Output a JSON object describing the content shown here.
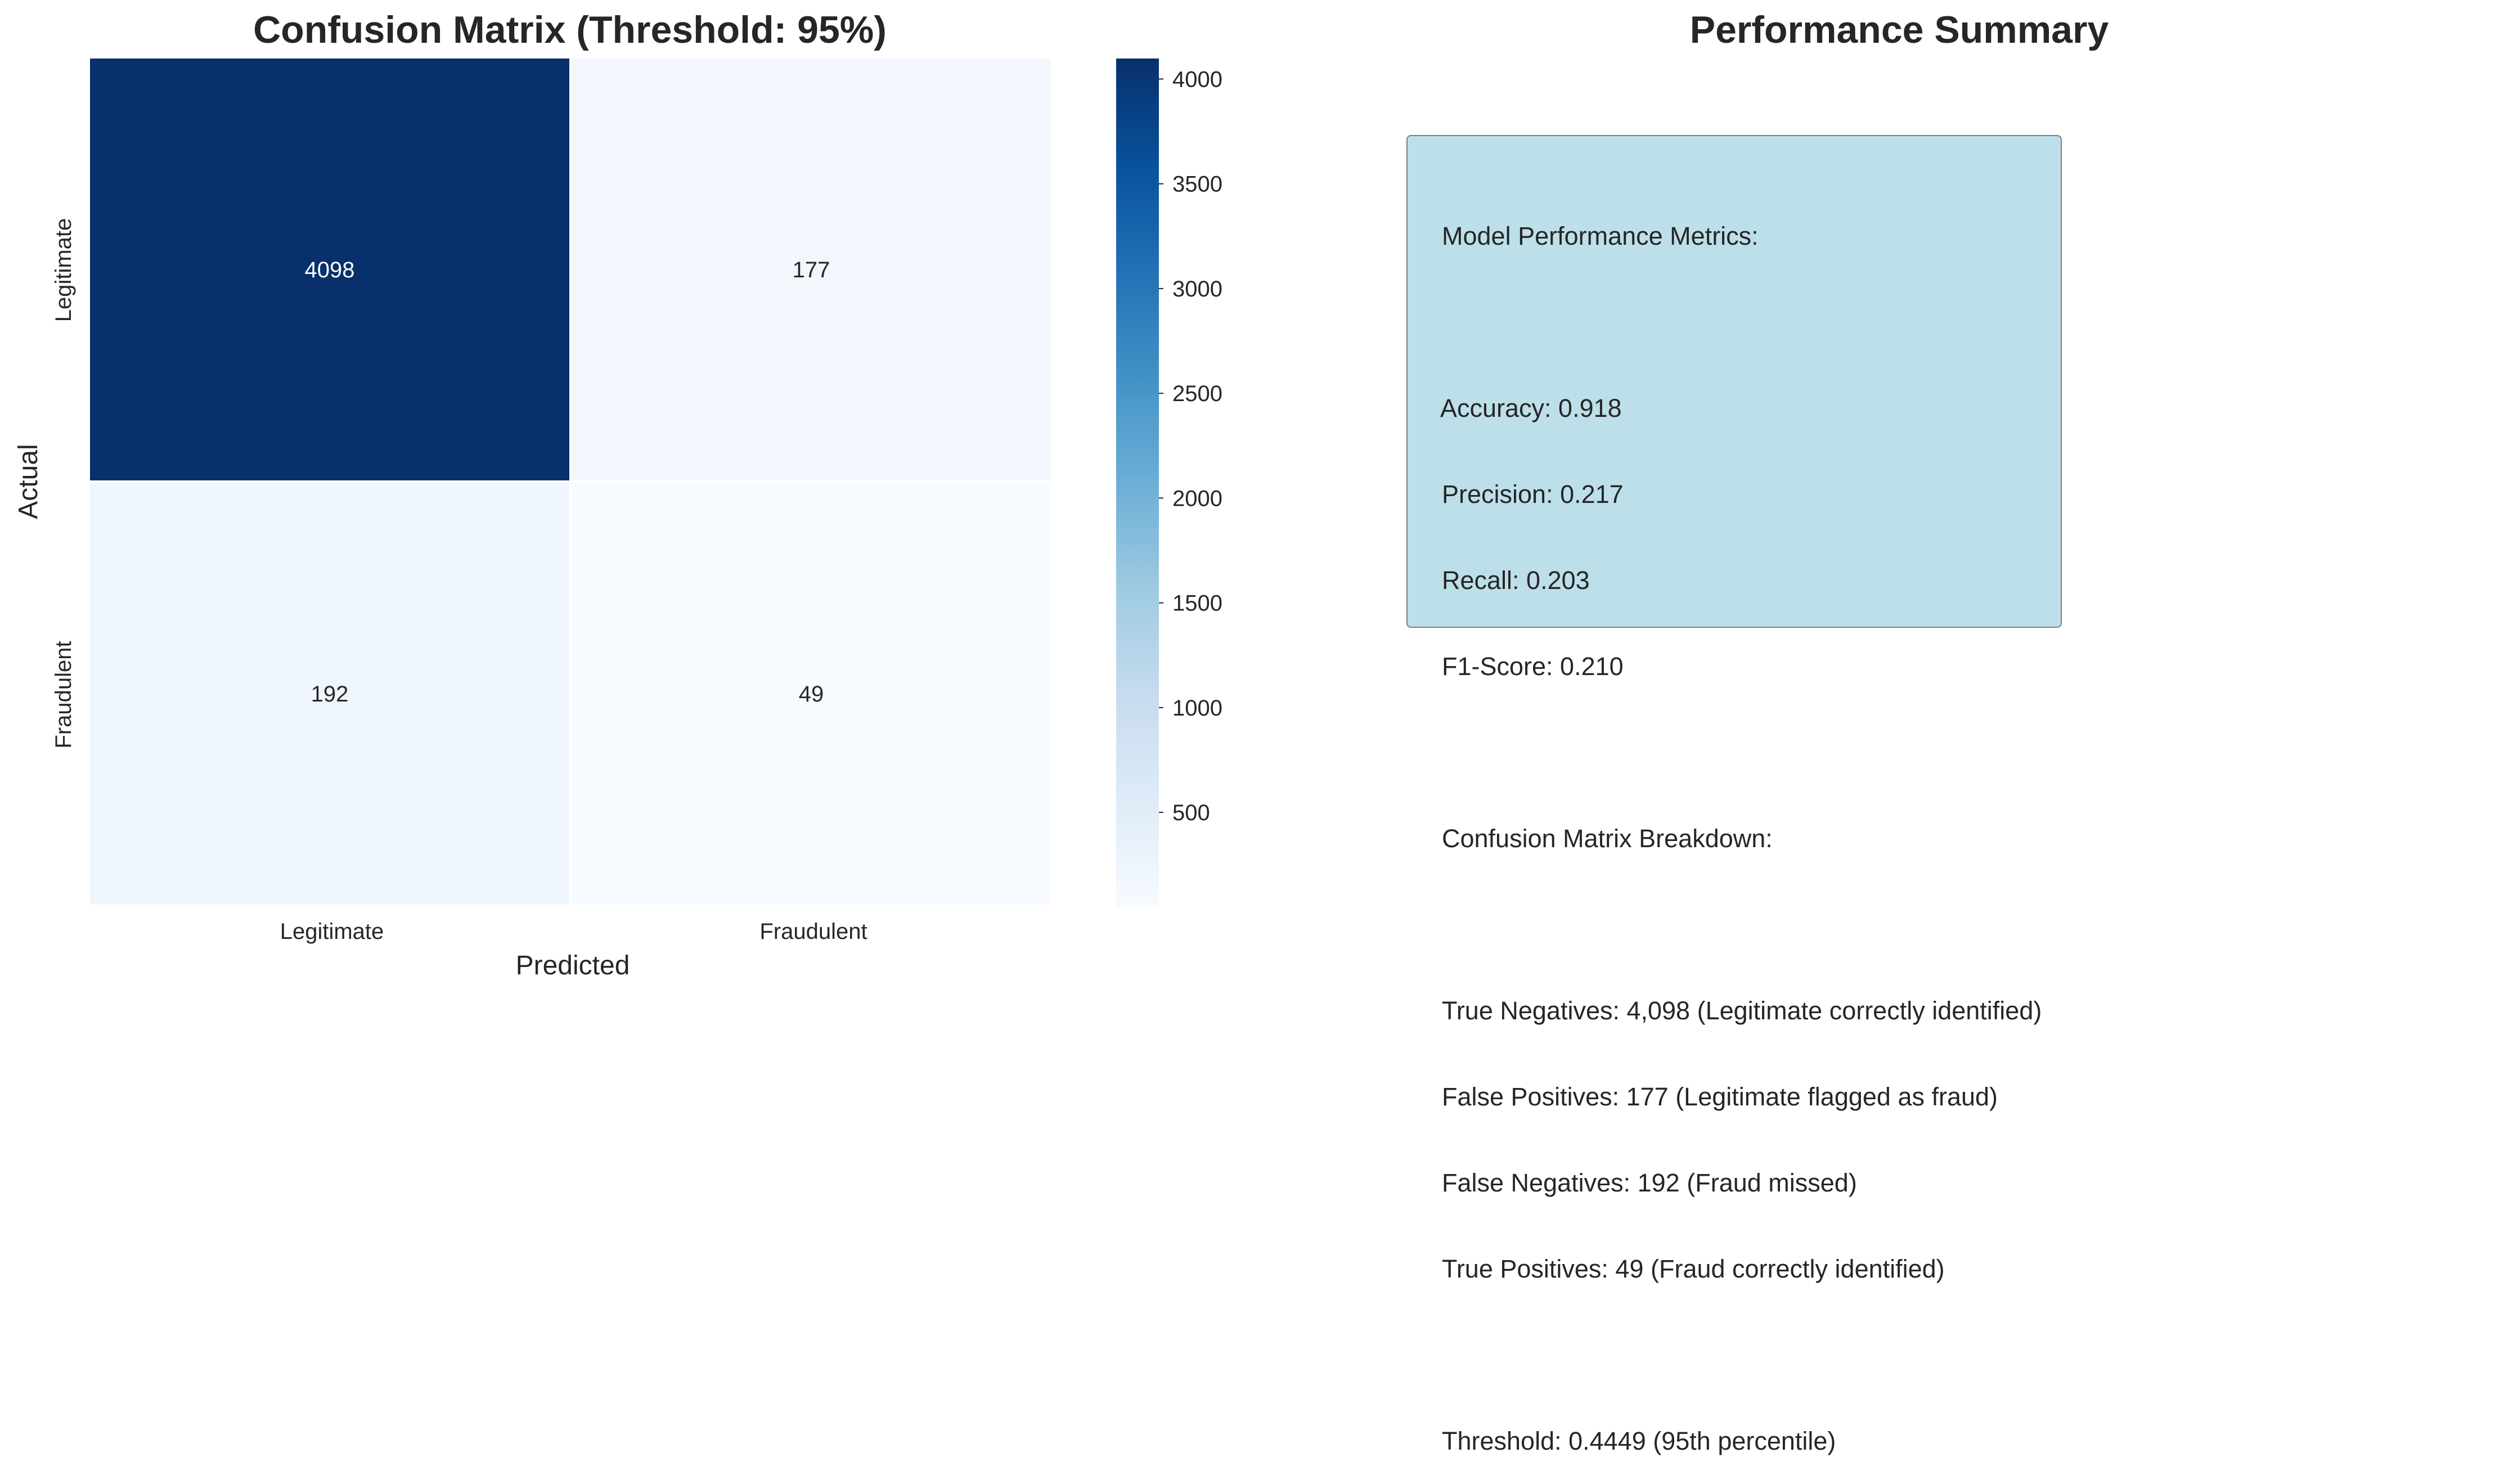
{
  "chart_data": [
    {
      "type": "heatmap",
      "title": "Confusion Matrix (Threshold: 95%)",
      "xlabel": "Predicted",
      "ylabel": "Actual",
      "x_categories": [
        "Legitimate",
        "Fraudulent"
      ],
      "y_categories": [
        "Legitimate",
        "Fraudulent"
      ],
      "values": [
        [
          4098,
          177
        ],
        [
          192,
          49
        ]
      ],
      "cell_labels": [
        [
          "4098",
          "177"
        ],
        [
          "192",
          "49"
        ]
      ],
      "colormap": "Blues",
      "color_range": [
        49,
        4098
      ],
      "colorbar_ticks": [
        500,
        1000,
        1500,
        2000,
        2500,
        3000,
        3500,
        4000
      ],
      "colorbar_tick_labels": [
        "500",
        "1000",
        "1500",
        "2000",
        "2500",
        "3000",
        "3500",
        "4000"
      ],
      "grid": false
    }
  ],
  "summary": {
    "title": "Performance Summary",
    "heading": "Model Performance Metrics:",
    "metrics": [
      "Accuracy: 0.918",
      "Precision: 0.217",
      "Recall: 0.203",
      "F1-Score: 0.210"
    ],
    "breakdown_heading": "Confusion Matrix Breakdown:",
    "breakdown": [
      "True Negatives: 4,098 (Legitimate correctly identified)",
      "False Positives: 177 (Legitimate flagged as fraud)",
      "False Negatives: 192 (Fraud missed)",
      "True Positives: 49 (Fraud correctly identified)"
    ],
    "threshold": "Threshold: 0.4449 (95th percentile)",
    "box_color": "#bddfe9"
  }
}
